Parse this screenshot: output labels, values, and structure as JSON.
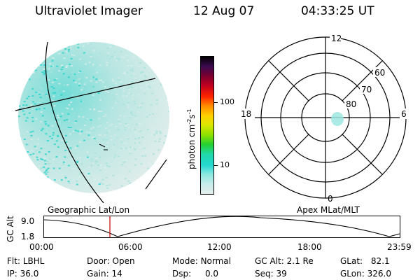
{
  "header": {
    "instrument": "Ultraviolet Imager",
    "date": "12 Aug 07",
    "time": "04:33:25 UT"
  },
  "colorbar": {
    "unit_label": "photon cm",
    "unit_exp1": "-2",
    "unit_s": "s",
    "unit_exp2": "-1",
    "ticks": [
      "100",
      "10"
    ],
    "colors": [
      "#000000",
      "#3a0a50",
      "#7a0030",
      "#c0001e",
      "#ff2400",
      "#ff8c00",
      "#ffd000",
      "#d8e800",
      "#8ee000",
      "#24d030",
      "#20d8a8",
      "#24d8d0",
      "#8ee8e0",
      "#c8ecea",
      "#e4eeee"
    ]
  },
  "polar": {
    "labels": {
      "top": "12",
      "left": "18",
      "right": "6",
      "bottom": "0"
    },
    "ring_labels": [
      "60",
      "70",
      "80"
    ]
  },
  "lowerbar": {
    "left_title": "Geographic Lat/Lon",
    "right_title": "Apex MLat/MLT",
    "axis_label": "GC Alt",
    "y_ticks": [
      "9.0",
      "1.8"
    ],
    "x_ticks": [
      "00:00",
      "06:00",
      "12:00",
      "18:00",
      "23:59"
    ]
  },
  "footer": {
    "flt_label": "Flt:",
    "flt_value": "LBHL",
    "door_label": "Door:",
    "door_value": "Open",
    "mode_label": "Mode:",
    "mode_value": "Normal",
    "gcalt_label": "GC Alt:",
    "gcalt_value": "2.1 Re",
    "glat_label": "GLat:",
    "glat_value": "82.1",
    "ip_label": "IP:",
    "ip_value": "36.0",
    "gain_label": "Gain:",
    "gain_value": "14",
    "dsp_label": "Dsp:",
    "dsp_value": "0.0",
    "seq_label": "Seq:",
    "seq_value": "39",
    "glon_label": "GLon:",
    "glon_value": "326.0"
  }
}
